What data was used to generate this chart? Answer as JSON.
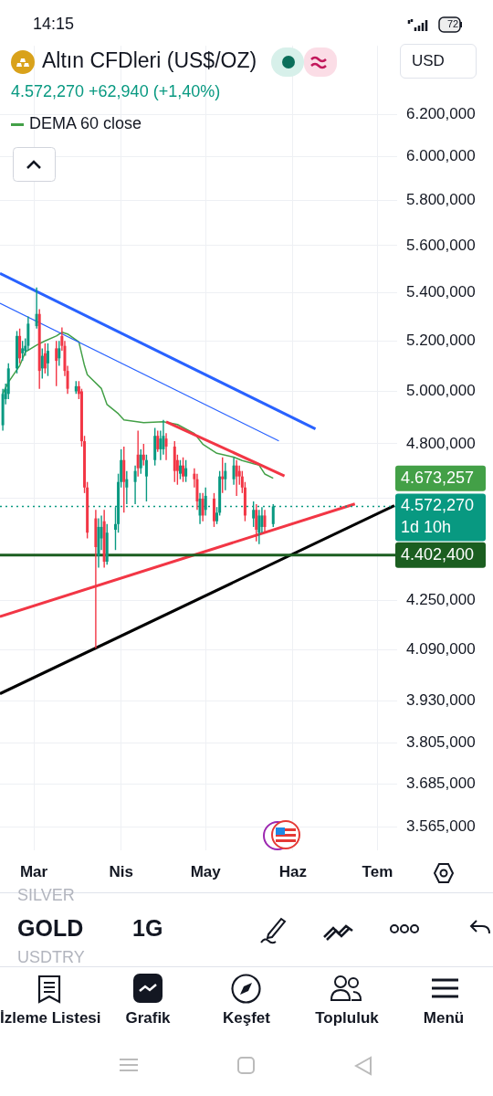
{
  "chart_data": {
    "type": "candlestick",
    "title": "Altın CFDleri (US$/OZ)",
    "subtitle": "4.572,270 +62,940 (+1,40%)",
    "xlim": [
      "--02-17",
      "--07-08"
    ],
    "xticks": [
      {
        "value": "--03-01",
        "label": "Mar"
      },
      {
        "value": "--04-01",
        "label": "Nis"
      },
      {
        "value": "--05-01",
        "label": "May"
      },
      {
        "value": "--06-01",
        "label": "Haz"
      },
      {
        "value": "--07-01",
        "label": "Tem"
      }
    ],
    "log": "y",
    "ylim": [
      3500,
      6540
    ],
    "yticks": [
      {
        "value": 3565,
        "label": "3.565,000"
      },
      {
        "value": 3685,
        "label": "3.685,000"
      },
      {
        "value": 3805,
        "label": "3.805,000"
      },
      {
        "value": 3930,
        "label": "3.930,000"
      },
      {
        "value": 4090,
        "label": "4.090,000"
      },
      {
        "value": 4250,
        "label": "4.250,000"
      },
      {
        "value": 4600,
        "label": null
      },
      {
        "value": 4800,
        "label": "4.800,000"
      },
      {
        "value": 5000,
        "label": "5.000,000"
      },
      {
        "value": 5200,
        "label": "5.200,000"
      },
      {
        "value": 5400,
        "label": "5.400,000"
      },
      {
        "value": 5600,
        "label": "5.600,000"
      },
      {
        "value": 5800,
        "label": "5.800,000"
      },
      {
        "value": 6000,
        "label": "6.000,000"
      },
      {
        "value": 6200,
        "label": "6.200,000"
      }
    ],
    "grid": true,
    "legend": "top left",
    "series": [
      {
        "x": [
          "--02-18",
          "--02-19",
          "--02-20",
          "--02-23",
          "--02-24",
          "--02-25",
          "--02-26",
          "--02-27",
          "--03-02",
          "--03-03",
          "--03-04",
          "--03-05",
          "--03-06",
          "--03-09",
          "--03-10",
          "--03-11",
          "--03-12",
          "--03-13",
          "--03-16",
          "--03-17",
          "--03-18",
          "--03-19",
          "--03-20",
          "--03-23",
          "--03-24",
          "--03-25",
          "--03-26",
          "--03-27",
          "--03-30",
          "--03-31",
          "--04-01",
          "--04-02",
          "--04-03",
          "--04-06",
          "--04-07",
          "--04-08",
          "--04-09",
          "--04-10",
          "--04-13",
          "--04-14",
          "--04-15",
          "--04-16",
          "--04-17",
          "--04-20",
          "--04-21",
          "--04-22",
          "--04-23",
          "--04-24",
          "--04-27",
          "--04-28",
          "--04-29",
          "--04-30",
          "--05-01",
          "--05-04",
          "--05-05",
          "--05-06",
          "--05-07",
          "--05-08",
          "--05-11",
          "--05-12",
          "--05-13",
          "--05-14",
          "--05-15",
          "--05-18",
          "--05-19",
          "--05-20",
          "--05-21",
          "--05-22",
          "--05-25"
        ],
        "ohlc": [
          [
            4870,
            5010,
            4850,
            4990
          ],
          [
            4970,
            5030,
            4950,
            5010
          ],
          [
            4990,
            5110,
            4970,
            5090
          ],
          [
            5090,
            5240,
            5070,
            5220
          ],
          [
            5220,
            5250,
            5110,
            5130
          ],
          [
            5150,
            5200,
            5120,
            5170
          ],
          [
            5160,
            5210,
            5140,
            5180
          ],
          [
            5180,
            5300,
            5160,
            5270
          ],
          [
            5260,
            5420,
            5250,
            5310
          ],
          [
            5310,
            5330,
            5010,
            5080
          ],
          [
            5090,
            5170,
            5050,
            5140
          ],
          [
            5150,
            5190,
            5070,
            5090
          ],
          [
            5110,
            5190,
            5060,
            5160
          ],
          [
            5170,
            5200,
            5020,
            5120
          ],
          [
            5130,
            5200,
            5100,
            5170
          ],
          [
            5220,
            5255,
            5160,
            5180
          ],
          [
            5180,
            5200,
            5060,
            5080
          ],
          [
            5080,
            5100,
            4990,
            5010
          ],
          [
            5000,
            5040,
            4990,
            5020
          ],
          [
            5020,
            5040,
            4970,
            4990
          ],
          [
            5000,
            5010,
            4790,
            4810
          ],
          [
            4810,
            4830,
            4620,
            4640
          ],
          [
            4640,
            4660,
            4460,
            4480
          ],
          [
            4530,
            4560,
            4095,
            4430
          ],
          [
            4400,
            4530,
            4360,
            4500
          ],
          [
            4460,
            4540,
            4420,
            4500
          ],
          [
            4520,
            4560,
            4360,
            4380
          ],
          [
            4380,
            4510,
            4370,
            4480
          ],
          [
            4490,
            4570,
            4420,
            4510
          ],
          [
            4510,
            4690,
            4480,
            4660
          ],
          [
            4660,
            4780,
            4640,
            4740
          ],
          [
            4740,
            4790,
            4550,
            4660
          ],
          [
            4640,
            4700,
            4580,
            4670
          ],
          [
            4660,
            4720,
            4580,
            4700
          ],
          [
            4760,
            4850,
            4680,
            4710
          ],
          [
            4710,
            4780,
            4690,
            4760
          ],
          [
            4760,
            4800,
            4720,
            4740
          ],
          [
            4680,
            4760,
            4590,
            4740
          ],
          [
            4740,
            4860,
            4720,
            4830
          ],
          [
            4830,
            4850,
            4770,
            4780
          ],
          [
            4780,
            4850,
            4740,
            4820
          ],
          [
            4780,
            4890,
            4760,
            4830
          ],
          [
            4820,
            4840,
            4740,
            4790
          ],
          [
            4790,
            4810,
            4660,
            4700
          ],
          [
            4740,
            4760,
            4650,
            4700
          ],
          [
            4690,
            4740,
            4670,
            4720
          ],
          [
            4720,
            4750,
            4660,
            4680
          ],
          [
            4680,
            4740,
            4660,
            4710
          ],
          [
            4690,
            4710,
            4640,
            4670
          ],
          [
            4670,
            4690,
            4560,
            4590
          ],
          [
            4540,
            4620,
            4510,
            4600
          ],
          [
            4600,
            4620,
            4520,
            4540
          ],
          [
            4560,
            4640,
            4540,
            4610
          ],
          [
            4600,
            4620,
            4500,
            4520
          ],
          [
            4520,
            4570,
            4510,
            4550
          ],
          [
            4550,
            4700,
            4540,
            4680
          ],
          [
            4680,
            4750,
            4620,
            4670
          ],
          [
            4670,
            4730,
            4630,
            4700
          ],
          [
            4670,
            4750,
            4650,
            4720
          ],
          [
            4720,
            4740,
            4610,
            4680
          ],
          [
            4700,
            4720,
            4650,
            4680
          ],
          [
            4680,
            4700,
            4620,
            4640
          ],
          [
            4640,
            4660,
            4520,
            4540
          ],
          [
            4530,
            4590,
            4500,
            4560
          ],
          [
            4560,
            4580,
            4450,
            4490
          ],
          [
            4480,
            4560,
            4440,
            4540
          ],
          [
            4500,
            4570,
            4480,
            4540
          ],
          [
            4540,
            4560,
            4480,
            4500
          ],
          [
            4510,
            4580,
            4500,
            4572.27
          ]
        ],
        "colors": [
          "#089981",
          "#089981",
          "#089981",
          "#089981",
          "#f23645",
          "#089981",
          "#089981",
          "#089981",
          "#089981",
          "#f23645",
          "#089981",
          "#f23645",
          "#089981",
          "#f23645",
          "#089981",
          "#f23645",
          "#f23645",
          "#f23645",
          "#089981",
          "#f23645",
          "#f23645",
          "#f23645",
          "#f23645",
          "#f23645",
          "#089981",
          "#089981",
          "#f23645",
          "#089981",
          "#089981",
          "#089981",
          "#089981",
          "#f23645",
          "#089981",
          "#089981",
          "#f23645",
          "#089981",
          "#f23645",
          "#089981",
          "#089981",
          "#f23645",
          "#089981",
          "#089981",
          "#f23645",
          "#f23645",
          "#f23645",
          "#089981",
          "#f23645",
          "#089981",
          "#f23645",
          "#f23645",
          "#089981",
          "#f23645",
          "#089981",
          "#f23645",
          "#089981",
          "#089981",
          "#f23645",
          "#089981",
          "#089981",
          "#f23645",
          "#f23645",
          "#f23645",
          "#f23645",
          "#089981",
          "#f23645",
          "#089981",
          "#089981",
          "#f23645",
          "#089981"
        ]
      },
      {
        "type": "line",
        "color": "#2962ff",
        "x": [
          "--02-17",
          "--06-09"
        ],
        "values": [
          5480,
          4856
        ]
      },
      {
        "type": "line",
        "color": "#2962ff",
        "x": [
          "--02-17",
          "--05-27"
        ],
        "values": [
          5354,
          4811
        ]
      },
      {
        "type": "line",
        "color": "#f23645",
        "x": [
          "--04-17",
          "--05-29"
        ],
        "values": [
          4883,
          4682
        ]
      },
      {
        "type": "line",
        "color": "#f23645",
        "x": [
          "--02-17",
          "--06-23"
        ],
        "values": [
          4197,
          4581
        ]
      },
      {
        "type": "line",
        "color": "#000000",
        "x": [
          "--02-17",
          "--07-07"
        ],
        "values": [
          3953,
          4575
        ]
      },
      {
        "type": "line",
        "name": "DEMA 60 close",
        "color": "#43a047",
        "x": [
          "--02-18",
          "--02-20",
          "--02-24",
          "--02-26",
          "--03-02",
          "--03-05",
          "--03-09",
          "--03-11",
          "--03-13",
          "--03-17",
          "--03-19",
          "--03-20",
          "--03-25",
          "--03-27",
          "--03-31",
          "--04-02",
          "--04-09",
          "--04-16",
          "--04-21",
          "--04-27",
          "--04-30",
          "--05-05",
          "--05-11",
          "--05-14",
          "--05-20",
          "--05-22",
          "--05-25"
        ],
        "values": [
          4991,
          5036,
          5101,
          5155,
          5183,
          5200,
          5220,
          5235,
          5228,
          5196,
          5101,
          5065,
          5011,
          4949,
          4914,
          4890,
          4880,
          4883,
          4873,
          4839,
          4799,
          4765,
          4751,
          4738,
          4721,
          4689,
          4673.257
        ]
      }
    ],
    "ref_lines": [
      {
        "axis": "y",
        "value": 4572.27,
        "label": "4.572,270",
        "color": "#089981",
        "line_style": "dotted"
      },
      {
        "axis": "y",
        "value": 4402.4,
        "label": "4.402,400",
        "color": "#1b5e20",
        "line_style": "solid"
      }
    ],
    "annotations": [
      "14:15",
      "72",
      "USD",
      "SILVER",
      "GOLD",
      "1G",
      "USDTRY",
      "İzleme Listesi",
      "Grafik",
      "Keşfet",
      "Topluluk",
      "Menü",
      "4.673,257",
      "1d 10h"
    ]
  }
}
